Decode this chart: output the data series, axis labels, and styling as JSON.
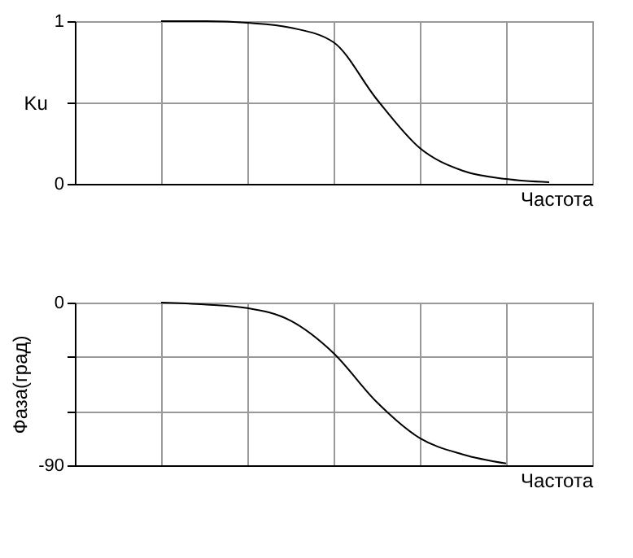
{
  "chart_data": [
    {
      "type": "line",
      "ylabel": "Ku",
      "xlabel": "Частота",
      "categories": [
        null,
        null,
        null,
        null,
        null,
        null,
        null,
        null,
        null,
        null,
        null,
        null,
        null
      ],
      "series": [
        {
          "color": "#000000",
          "values": [
            null,
            null,
            1.0,
            1.0,
            0.99,
            0.96,
            0.87,
            0.52,
            0.22,
            0.08,
            0.03,
            0.01,
            null
          ]
        }
      ],
      "ylim": [
        0,
        1
      ],
      "yticks": [
        0,
        {
          "value": 0.5,
          "label": null
        },
        1
      ],
      "grid": true,
      "tick_labels": "y",
      "marker": "none",
      "line_style": "solid"
    },
    {
      "type": "line",
      "ylabel": "Фаза(град)",
      "xlabel": "Частота",
      "categories": [
        null,
        null,
        null,
        null,
        null,
        null,
        null,
        null,
        null,
        null,
        null,
        null,
        null
      ],
      "series": [
        {
          "color": "#000000",
          "values": [
            null,
            null,
            0,
            -1,
            -3,
            -10,
            -28,
            -55,
            -75,
            -84,
            -89,
            null,
            null
          ]
        }
      ],
      "ylim": [
        -90,
        0
      ],
      "yticks": [
        -90,
        {
          "value": -60,
          "label": null
        },
        {
          "value": -30,
          "label": null
        },
        0
      ],
      "grid": true,
      "tick_labels": "y",
      "marker": "none",
      "line_style": "solid"
    }
  ]
}
